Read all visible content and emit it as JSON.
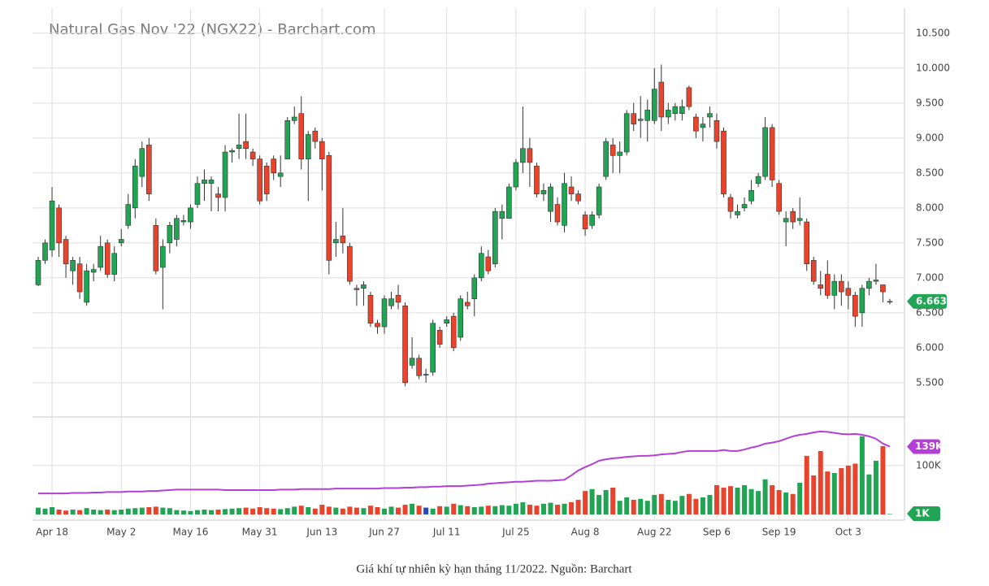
{
  "chart_data": [
    {
      "type": "candlestick",
      "title": "Natural Gas Nov '22 (NGX22) - Barchart.com",
      "categories": [
        null,
        null,
        "Apr 18",
        null,
        null,
        null,
        null,
        null,
        null,
        null,
        null,
        null,
        "May 2",
        null,
        null,
        null,
        null,
        null,
        null,
        null,
        null,
        null,
        "May 16",
        null,
        null,
        null,
        null,
        null,
        null,
        null,
        null,
        null,
        "May 31",
        null,
        null,
        null,
        null,
        null,
        null,
        null,
        null,
        "Jun 13",
        null,
        null,
        null,
        null,
        null,
        null,
        null,
        null,
        "Jun 27",
        null,
        null,
        null,
        null,
        null,
        null,
        null,
        null,
        "Jul 11",
        null,
        null,
        null,
        null,
        null,
        null,
        null,
        null,
        null,
        "Jul 25",
        null,
        null,
        null,
        null,
        null,
        null,
        null,
        null,
        null,
        "Aug 8",
        null,
        null,
        null,
        null,
        null,
        null,
        null,
        null,
        null,
        "Aug 22",
        null,
        null,
        null,
        null,
        null,
        null,
        null,
        null,
        "Sep 6",
        null,
        null,
        null,
        null,
        null,
        null,
        null,
        null,
        "Sep 19",
        null,
        null,
        null,
        null,
        null,
        null,
        null,
        null,
        null,
        "Oct 3",
        null,
        null,
        null,
        null,
        null,
        null
      ],
      "open": [
        6.9,
        7.25,
        7.4,
        8.0,
        7.55,
        7.1,
        7.2,
        6.65,
        7.08,
        7.15,
        7.5,
        7.05,
        7.5,
        7.75,
        8.0,
        8.45,
        8.9,
        7.75,
        7.15,
        7.5,
        7.55,
        7.8,
        7.8,
        8.05,
        8.35,
        8.35,
        8.2,
        8.15,
        8.8,
        8.85,
        8.95,
        8.8,
        8.7,
        8.6,
        8.7,
        8.45,
        8.7,
        9.25,
        9.35,
        8.7,
        9.1,
        8.95,
        8.75,
        7.5,
        7.6,
        7.45,
        6.85,
        6.85,
        6.75,
        6.35,
        6.3,
        6.6,
        6.75,
        6.6,
        5.75,
        5.85,
        5.62,
        5.65,
        6.25,
        6.35,
        6.45,
        6.15,
        6.65,
        6.7,
        7.0,
        7.3,
        7.2,
        7.85,
        7.85,
        8.3,
        8.65,
        8.85,
        8.6,
        8.2,
        7.95,
        8.05,
        7.75,
        8.3,
        8.2,
        7.9,
        7.75,
        7.9,
        8.45,
        8.9,
        8.75,
        8.8,
        9.35,
        9.25,
        9.25,
        9.25,
        9.8,
        9.3,
        9.35,
        9.35,
        9.72,
        9.3,
        9.15,
        9.3,
        9.25,
        9.1,
        8.15,
        7.9,
        8.0,
        8.1,
        8.35,
        8.45,
        9.15,
        8.35,
        7.8,
        7.95,
        7.82,
        7.8,
        7.25,
        6.9,
        7.05,
        6.75,
        6.95,
        6.85,
        6.75,
        6.5,
        6.85,
        6.95,
        6.9,
        6.66
      ],
      "high": [
        7.3,
        7.55,
        8.3,
        8.05,
        7.6,
        7.3,
        7.3,
        7.2,
        7.2,
        7.6,
        7.55,
        7.45,
        7.7,
        8.2,
        8.7,
        8.95,
        9.0,
        7.85,
        7.55,
        7.8,
        7.9,
        7.9,
        8.05,
        8.45,
        8.55,
        8.45,
        8.3,
        8.9,
        8.85,
        9.35,
        9.35,
        8.85,
        8.75,
        8.65,
        8.75,
        8.75,
        9.3,
        9.45,
        9.6,
        9.1,
        9.15,
        9.0,
        8.8,
        7.8,
        8.0,
        7.5,
        6.9,
        6.95,
        6.8,
        6.4,
        6.75,
        6.8,
        6.9,
        6.65,
        6.15,
        5.9,
        5.7,
        6.4,
        6.3,
        6.45,
        6.5,
        6.75,
        6.8,
        7.05,
        7.45,
        7.4,
        8.0,
        8.05,
        8.35,
        8.7,
        9.45,
        9.0,
        8.65,
        8.35,
        8.35,
        8.15,
        8.5,
        8.45,
        8.25,
        7.95,
        7.95,
        8.35,
        9.0,
        9.0,
        8.95,
        9.4,
        9.5,
        9.6,
        9.55,
        10.0,
        10.05,
        9.5,
        9.5,
        9.55,
        9.75,
        9.35,
        9.3,
        9.45,
        9.35,
        9.15,
        8.2,
        8.05,
        8.15,
        8.4,
        8.5,
        9.3,
        9.2,
        8.4,
        7.95,
        8.0,
        8.15,
        7.85,
        7.3,
        7.1,
        7.25,
        7.05,
        7.05,
        6.95,
        6.8,
        6.9,
        7.0,
        7.2,
        6.9,
        6.7
      ],
      "low": [
        6.88,
        7.2,
        7.3,
        7.3,
        7.0,
        6.9,
        6.7,
        6.6,
        6.95,
        7.1,
        7.0,
        6.95,
        7.45,
        7.7,
        7.85,
        8.3,
        8.1,
        7.05,
        6.55,
        7.35,
        7.45,
        7.75,
        7.7,
        8.0,
        8.1,
        7.95,
        7.95,
        7.95,
        8.65,
        8.7,
        8.7,
        8.6,
        8.05,
        8.1,
        8.4,
        8.3,
        8.7,
        9.2,
        8.55,
        8.1,
        8.85,
        8.25,
        7.05,
        7.3,
        7.35,
        6.9,
        6.6,
        6.6,
        6.3,
        6.2,
        6.2,
        6.55,
        6.55,
        5.45,
        5.7,
        5.55,
        5.5,
        5.6,
        6.0,
        6.3,
        5.95,
        6.1,
        6.55,
        6.45,
        6.95,
        7.05,
        7.15,
        7.55,
        7.85,
        8.25,
        8.5,
        8.3,
        8.15,
        8.1,
        7.8,
        7.75,
        7.65,
        8.1,
        8.05,
        7.6,
        7.7,
        7.85,
        8.4,
        8.5,
        8.5,
        8.75,
        9.1,
        9.0,
        8.95,
        9.2,
        9.1,
        9.2,
        9.25,
        9.25,
        9.4,
        9.0,
        8.95,
        9.15,
        8.85,
        8.15,
        7.85,
        7.85,
        7.95,
        8.05,
        8.3,
        8.4,
        8.3,
        7.9,
        7.45,
        7.7,
        7.75,
        7.1,
        6.9,
        6.75,
        6.7,
        6.55,
        6.6,
        6.55,
        6.3,
        6.3,
        6.75,
        6.9,
        6.65,
        6.62
      ],
      "close": [
        7.25,
        7.5,
        8.1,
        7.5,
        7.2,
        7.25,
        6.8,
        7.1,
        7.12,
        7.45,
        7.05,
        7.35,
        7.55,
        8.05,
        8.6,
        8.85,
        8.2,
        7.1,
        7.45,
        7.75,
        7.85,
        7.82,
        8.0,
        8.35,
        8.4,
        8.4,
        8.15,
        8.8,
        8.82,
        8.9,
        8.85,
        8.7,
        8.1,
        8.2,
        8.5,
        8.5,
        9.25,
        9.3,
        8.7,
        9.05,
        8.95,
        8.7,
        7.25,
        7.55,
        7.5,
        6.95,
        6.83,
        6.9,
        6.35,
        6.3,
        6.7,
        6.7,
        6.65,
        5.5,
        5.85,
        5.6,
        5.62,
        6.35,
        6.05,
        6.4,
        6.0,
        6.7,
        6.6,
        7.0,
        7.35,
        7.1,
        7.95,
        7.95,
        8.3,
        8.65,
        8.85,
        8.65,
        8.2,
        8.25,
        8.3,
        7.8,
        8.35,
        8.2,
        8.1,
        7.7,
        7.9,
        8.3,
        8.95,
        8.75,
        8.8,
        9.35,
        9.2,
        9.27,
        9.4,
        9.7,
        9.3,
        9.4,
        9.45,
        9.45,
        9.45,
        9.1,
        9.2,
        9.35,
        8.95,
        8.2,
        7.95,
        7.95,
        8.05,
        8.25,
        8.45,
        9.15,
        8.4,
        7.95,
        7.85,
        7.8,
        7.85,
        7.2,
        6.95,
        6.85,
        6.75,
        6.95,
        6.8,
        6.75,
        6.45,
        6.85,
        6.95,
        6.97,
        6.8,
        6.663
      ],
      "up_color": "#22a455",
      "down_color": "#e8432c",
      "flat_color": "#2548c9",
      "last_color": "#22a455",
      "ylim": [
        5.01,
        10.8
      ],
      "yticks": [
        {
          "value": 5.5,
          "label": "5.500"
        },
        {
          "value": 6,
          "label": "6.000"
        },
        {
          "value": 6.5,
          "label": "6.500"
        },
        {
          "value": 7,
          "label": "7.000"
        },
        {
          "value": 7.5,
          "label": "7.500"
        },
        {
          "value": 8,
          "label": "8.000"
        },
        {
          "value": 8.5,
          "label": "8.500"
        },
        {
          "value": 9,
          "label": "9.000"
        },
        {
          "value": 9.5,
          "label": "9.500"
        },
        {
          "value": 10,
          "label": "10.000"
        },
        {
          "value": 10.5,
          "label": "10.500"
        }
      ],
      "grid": true
    },
    {
      "type": "bar",
      "series": [
        {
          "type": "bar",
          "values": [
            14000,
            12000,
            15000,
            10000,
            8000,
            10000,
            9000,
            13000,
            10000,
            9000,
            10000,
            9000,
            10000,
            12000,
            13000,
            14000,
            15000,
            16000,
            14000,
            13000,
            9000,
            8000,
            7000,
            9000,
            10000,
            9000,
            10000,
            11000,
            12000,
            13000,
            14000,
            12000,
            15000,
            13000,
            12000,
            11000,
            13000,
            16000,
            18000,
            15000,
            12000,
            20000,
            16000,
            14000,
            12000,
            16000,
            14000,
            13000,
            18000,
            15000,
            12000,
            16000,
            14000,
            20000,
            22000,
            18000,
            14000,
            12000,
            17000,
            16000,
            22000,
            19000,
            17000,
            15000,
            16000,
            18000,
            17000,
            19000,
            18000,
            22000,
            25000,
            20000,
            18000,
            22000,
            24000,
            20000,
            22000,
            25000,
            30000,
            48000,
            52000,
            40000,
            50000,
            55000,
            28000,
            35000,
            30000,
            32000,
            28000,
            40000,
            42000,
            30000,
            28000,
            38000,
            42000,
            32000,
            35000,
            40000,
            60000,
            55000,
            58000,
            55000,
            60000,
            52000,
            48000,
            72000,
            60000,
            50000,
            45000,
            42000,
            65000,
            120000,
            80000,
            130000,
            88000,
            85000,
            95000,
            100000,
            104000,
            160000,
            82000,
            110000,
            140000,
            1000
          ],
          "value_labels": [
            null,
            null,
            null,
            null,
            null,
            null,
            null,
            null,
            null,
            null,
            null,
            null,
            null,
            null,
            null,
            null,
            null,
            null,
            null,
            null,
            null,
            null,
            null,
            null,
            null,
            null,
            null,
            null,
            null,
            null,
            null,
            null,
            null,
            null,
            null,
            null,
            null,
            null,
            null,
            null,
            null,
            null,
            null,
            null,
            null,
            null,
            null,
            null,
            null,
            null,
            null,
            null,
            null,
            null,
            null,
            null,
            null,
            null,
            null,
            null,
            null,
            null,
            null,
            null,
            null,
            null,
            null,
            null,
            null,
            null,
            null,
            null,
            null,
            null,
            null,
            null,
            null,
            null,
            null,
            null,
            null,
            null,
            null,
            null,
            null,
            null,
            null,
            null,
            null,
            null,
            null,
            null,
            null,
            null,
            null,
            null,
            null,
            null,
            null,
            null,
            null,
            null,
            null,
            null,
            null,
            null,
            null,
            null,
            null,
            null,
            null,
            null,
            null,
            null,
            null,
            null,
            null,
            null,
            null,
            null,
            null,
            null,
            null,
            "1K"
          ]
        },
        {
          "type": "line",
          "color": "#b53fd6",
          "values": [
            43000,
            43000,
            43000,
            43000,
            43000,
            44000,
            44000,
            44000,
            45000,
            45000,
            46000,
            46000,
            46000,
            47000,
            47000,
            47000,
            48000,
            48000,
            49000,
            50000,
            51000,
            51000,
            51000,
            51000,
            51000,
            51000,
            51000,
            50000,
            50000,
            50000,
            50000,
            50000,
            50000,
            50000,
            50000,
            51000,
            51000,
            51000,
            52000,
            52000,
            52000,
            52000,
            52000,
            53000,
            53000,
            53000,
            53000,
            53000,
            53000,
            53000,
            54000,
            54000,
            54000,
            55000,
            55000,
            56000,
            56000,
            57000,
            57000,
            58000,
            58000,
            58000,
            59000,
            60000,
            61000,
            63000,
            64000,
            65000,
            66000,
            67000,
            67000,
            68000,
            69000,
            69000,
            69000,
            70000,
            71000,
            80000,
            90000,
            97000,
            103000,
            110000,
            113000,
            115000,
            116000,
            118000,
            119000,
            120000,
            120000,
            121000,
            123000,
            124000,
            125000,
            128000,
            130000,
            130000,
            130000,
            130000,
            130000,
            132000,
            130000,
            130000,
            133000,
            137000,
            140000,
            145000,
            147000,
            150000,
            155000,
            160000,
            163000,
            165000,
            168000,
            170000,
            169000,
            167000,
            165000,
            164000,
            165000,
            163000,
            160000,
            155000,
            145000,
            139000
          ],
          "value_labels": [
            null,
            null,
            null,
            null,
            null,
            null,
            null,
            null,
            null,
            null,
            null,
            null,
            null,
            null,
            null,
            null,
            null,
            null,
            null,
            null,
            null,
            null,
            null,
            null,
            null,
            null,
            null,
            null,
            null,
            null,
            null,
            null,
            null,
            null,
            null,
            null,
            null,
            null,
            null,
            null,
            null,
            null,
            null,
            null,
            null,
            null,
            null,
            null,
            null,
            null,
            null,
            null,
            null,
            null,
            null,
            null,
            null,
            null,
            null,
            null,
            null,
            null,
            null,
            null,
            null,
            null,
            null,
            null,
            null,
            null,
            null,
            null,
            null,
            null,
            null,
            null,
            null,
            null,
            null,
            null,
            null,
            null,
            null,
            null,
            null,
            null,
            null,
            null,
            null,
            null,
            null,
            null,
            null,
            null,
            null,
            null,
            null,
            null,
            null,
            null,
            null,
            null,
            null,
            null,
            null,
            null,
            null,
            null,
            null,
            null,
            null,
            null,
            null,
            null,
            null,
            null,
            null,
            null,
            null,
            null,
            null,
            null,
            null,
            "139K"
          ]
        }
      ],
      "up_color": "#22a455",
      "down_color": "#e8432c",
      "flat_color": "#2548c9",
      "ylim": [
        0,
        198000
      ],
      "yticks": [
        {
          "value": 100000,
          "label": "100K"
        }
      ],
      "grid": true
    }
  ],
  "caption": "Giá khí tự nhiên kỳ hạn tháng 11/2022. Nguồn: Barchart"
}
